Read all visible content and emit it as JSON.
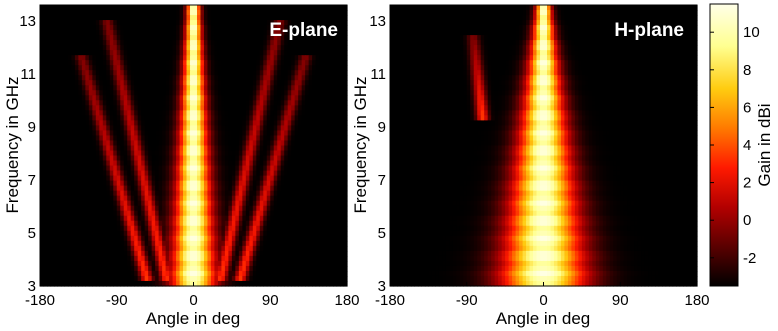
{
  "chart_data": [
    {
      "type": "heatmap",
      "title": "E-plane",
      "xlabel": "Angle in deg",
      "ylabel": "Frequency in GHz",
      "xlim": [
        -180,
        180
      ],
      "ylim": [
        3,
        13.6
      ],
      "x_ticks": [
        -180,
        -90,
        0,
        90,
        180
      ],
      "y_ticks": [
        3,
        5,
        7,
        9,
        11,
        13
      ],
      "main_lobe": {
        "center_deg": 0,
        "halfwidth_deg_at_3GHz": 25,
        "halfwidth_deg_at_13GHz": 8,
        "peak_gain_dBi": 10.5
      },
      "side_lobe_bands": [
        {
          "start_deg": -55,
          "start_ghz": 3.3,
          "end_deg": -130,
          "end_ghz": 11.5
        },
        {
          "start_deg": -32,
          "start_ghz": 3.3,
          "end_deg": -100,
          "end_ghz": 12.8
        },
        {
          "start_deg": 32,
          "start_ghz": 3.3,
          "end_deg": 100,
          "end_ghz": 12.8
        },
        {
          "start_deg": 55,
          "start_ghz": 3.3,
          "end_deg": 130,
          "end_ghz": 11.5
        }
      ]
    },
    {
      "type": "heatmap",
      "title": "H-plane",
      "xlabel": "Angle in deg",
      "ylabel": "Frequency in GHz",
      "xlim": [
        -180,
        180
      ],
      "ylim": [
        3,
        13.6
      ],
      "x_ticks": [
        -180,
        -90,
        0,
        90,
        180
      ],
      "y_ticks": [
        3,
        5,
        7,
        9,
        11,
        13
      ],
      "main_lobe": {
        "center_deg": 0,
        "halfwidth_deg_at_3GHz": 48,
        "halfwidth_deg_at_13GHz": 10,
        "peak_gain_dBi": 10.5
      },
      "side_lobe_bands": [
        {
          "start_deg": -72,
          "start_ghz": 9.5,
          "end_deg": -82,
          "end_ghz": 12.3
        }
      ]
    }
  ],
  "colorbar": {
    "label": "Gain in dBi",
    "range_dBi": [
      -3.5,
      11.5
    ],
    "ticks": [
      -2,
      0,
      2,
      4,
      6,
      8,
      10
    ],
    "colormap": [
      "#000000",
      "#5a0000",
      "#b30000",
      "#ff1a00",
      "#ff7a00",
      "#ffcc10",
      "#ffff90",
      "#ffffe8"
    ]
  }
}
